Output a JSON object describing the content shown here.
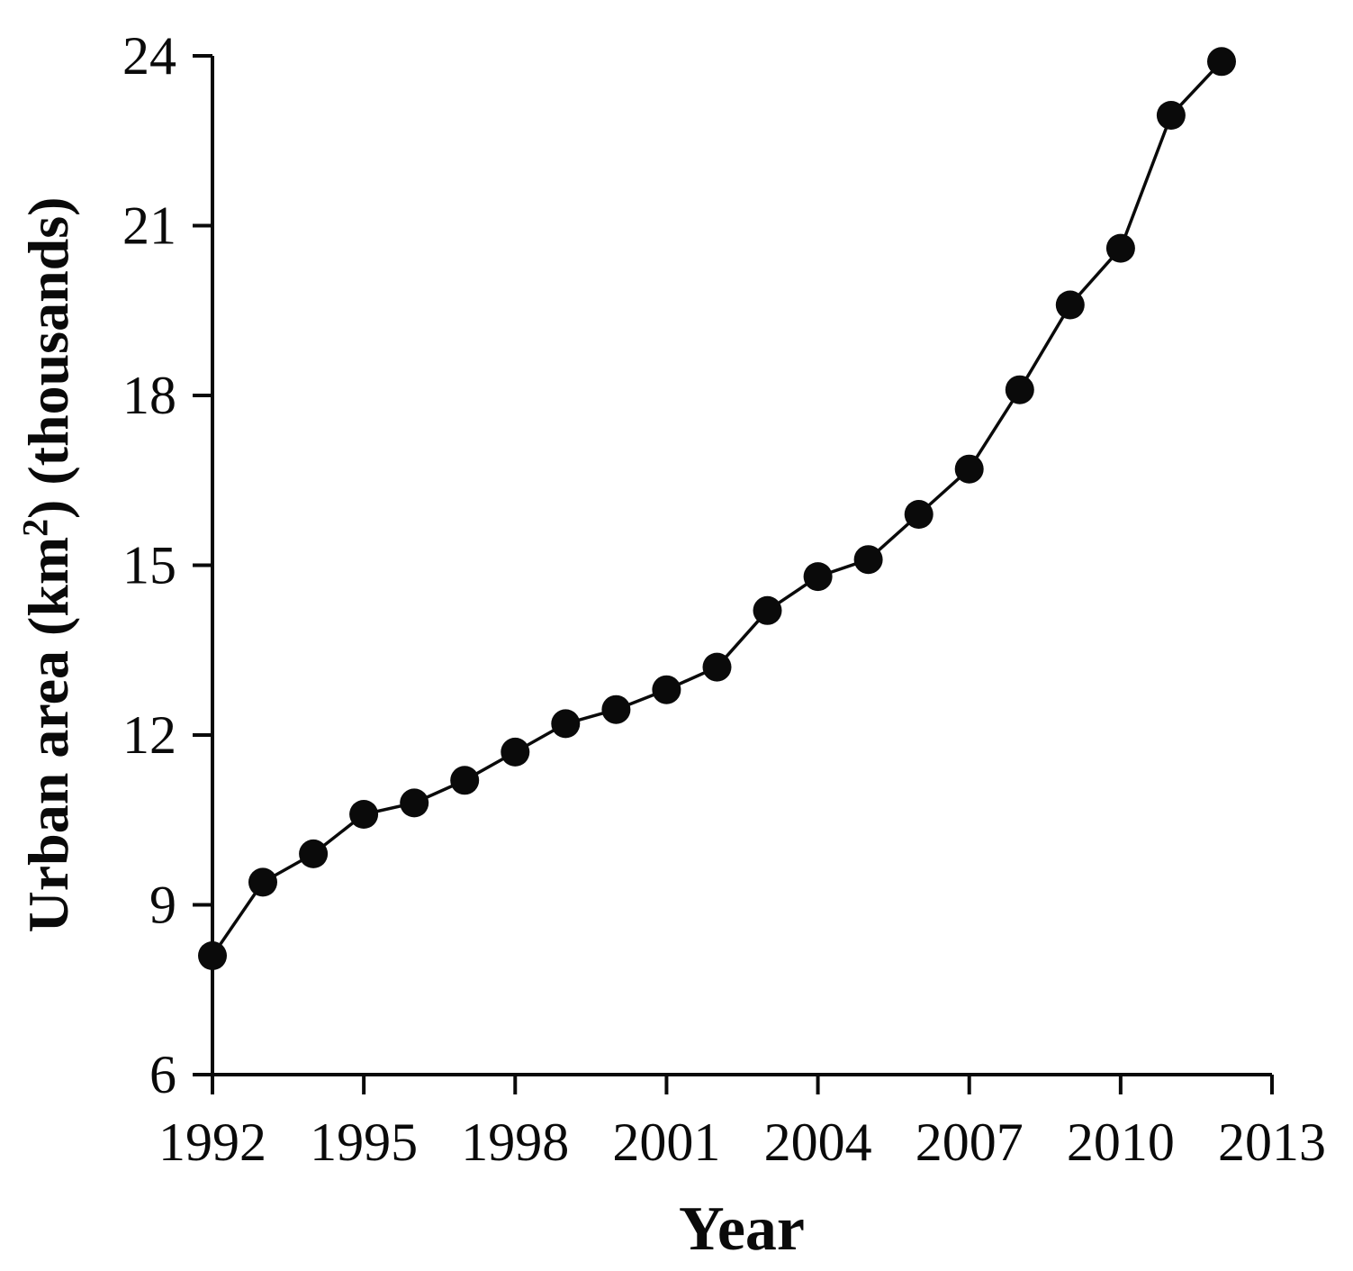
{
  "page": {
    "background": "#ffffff",
    "foreground": "#0a0a0a"
  },
  "chart_data": {
    "type": "line",
    "series_name": "Urban area",
    "x": [
      1992,
      1993,
      1994,
      1995,
      1996,
      1997,
      1998,
      1999,
      2000,
      2001,
      2002,
      2003,
      2004,
      2005,
      2006,
      2007,
      2008,
      2009,
      2010,
      2011,
      2012
    ],
    "values": [
      8.1,
      9.4,
      9.9,
      10.6,
      10.8,
      11.2,
      11.7,
      12.2,
      12.45,
      12.8,
      13.2,
      14.2,
      14.8,
      15.1,
      15.9,
      16.7,
      18.1,
      19.6,
      20.6,
      22.95,
      23.9
    ],
    "title": "",
    "xlabel": "Year",
    "ylabel": "Urban area (km²) (thousands)",
    "ylabel_parts": {
      "pre": "Urban area (km",
      "sup": "2",
      "post": ") (thousands)"
    },
    "xlim": [
      1992,
      2013
    ],
    "ylim": [
      6,
      24
    ],
    "xticks": [
      1992,
      1995,
      1998,
      2001,
      2004,
      2007,
      2010,
      2013
    ],
    "yticks": [
      6,
      9,
      12,
      15,
      18,
      21,
      24
    ],
    "grid": false,
    "legend": "none",
    "marker": "filled-circle",
    "marker_color": "#0a0a0a",
    "line_color": "#0a0a0a",
    "axis_color": "#0a0a0a"
  }
}
